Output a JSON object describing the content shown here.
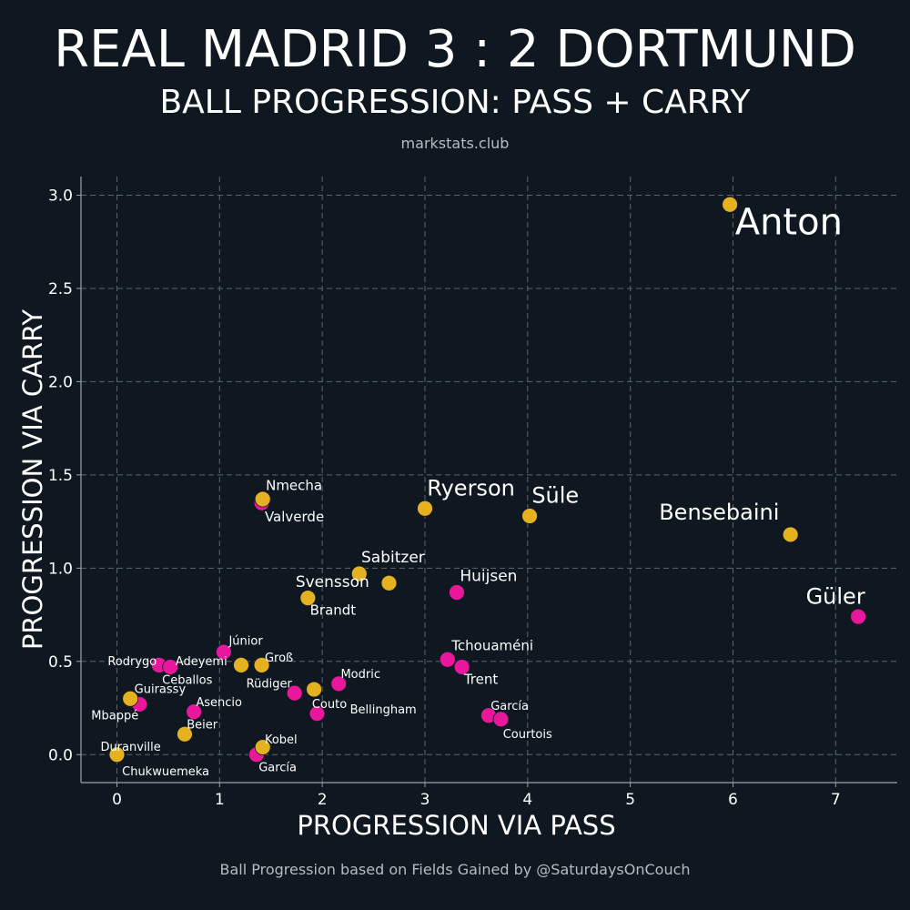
{
  "header": {
    "title": "REAL MADRID 3 : 2 DORTMUND",
    "subtitle": "BALL PROGRESSION: PASS + CARRY",
    "source": "markstats.club"
  },
  "footer": {
    "text": "Ball Progression based on Fields Gained by @SaturdaysOnCouch"
  },
  "colors": {
    "background": "#0f1820",
    "real_madrid": "#e8179c",
    "dortmund": "#e6b120",
    "grid": "#5a6670",
    "axis": "#9aa3aa"
  },
  "chart_data": {
    "type": "scatter",
    "xlabel": "PROGRESSION VIA PASS",
    "ylabel": "PROGRESSION VIA CARRY",
    "xlim": [
      -0.35,
      7.6
    ],
    "ylim": [
      -0.15,
      3.1
    ],
    "xticks": [
      "0",
      "1",
      "2",
      "3",
      "4",
      "5",
      "6",
      "7"
    ],
    "yticks": [
      "0.0",
      "0.5",
      "1.0",
      "1.5",
      "2.0",
      "2.5",
      "3.0"
    ],
    "grid": true,
    "series": [
      {
        "team": "real_madrid",
        "points": [
          {
            "name": "Güler",
            "x": 7.22,
            "y": 0.74
          },
          {
            "name": "Huijsen",
            "x": 3.31,
            "y": 0.87
          },
          {
            "name": "Tchouaméni",
            "x": 3.22,
            "y": 0.51
          },
          {
            "name": "Trent",
            "x": 3.36,
            "y": 0.47
          },
          {
            "name": "García",
            "x": 3.62,
            "y": 0.21
          },
          {
            "name": "Courtois",
            "x": 3.74,
            "y": 0.19
          },
          {
            "name": "Valverde",
            "x": 1.41,
            "y": 1.35
          },
          {
            "name": "Júnior",
            "x": 1.04,
            "y": 0.55
          },
          {
            "name": "Rodrygo",
            "x": 0.41,
            "y": 0.48
          },
          {
            "name": "Ceballos",
            "x": 0.52,
            "y": 0.47
          },
          {
            "name": "Modric",
            "x": 2.16,
            "y": 0.38
          },
          {
            "name": "Rüdiger",
            "x": 1.73,
            "y": 0.33
          },
          {
            "name": "Bellingham",
            "x": 1.95,
            "y": 0.22
          },
          {
            "name": "Asencio",
            "x": 0.75,
            "y": 0.23
          },
          {
            "name": "Mbappé",
            "x": 0.22,
            "y": 0.27
          },
          {
            "name": "García",
            "x": 1.36,
            "y": 0.0
          }
        ]
      },
      {
        "team": "dortmund",
        "points": [
          {
            "name": "Anton",
            "x": 5.97,
            "y": 2.95
          },
          {
            "name": "Bensebaini",
            "x": 6.56,
            "y": 1.18
          },
          {
            "name": "Süle",
            "x": 4.02,
            "y": 1.28
          },
          {
            "name": "Ryerson",
            "x": 3.0,
            "y": 1.32
          },
          {
            "name": "Nmecha",
            "x": 1.42,
            "y": 1.37
          },
          {
            "name": "Sabitzer",
            "x": 2.36,
            "y": 0.97
          },
          {
            "name": "Sabitzer",
            "x": 2.65,
            "y": 0.92
          },
          {
            "name": "Svensson",
            "x": 1.86,
            "y": 0.84
          },
          {
            "name": "Brandt",
            "x": 1.86,
            "y": 0.84
          },
          {
            "name": "Adeyemi",
            "x": 1.21,
            "y": 0.48
          },
          {
            "name": "Groß",
            "x": 1.41,
            "y": 0.48
          },
          {
            "name": "Couto",
            "x": 1.92,
            "y": 0.35
          },
          {
            "name": "Guirassy",
            "x": 0.13,
            "y": 0.3
          },
          {
            "name": "Beier",
            "x": 0.66,
            "y": 0.11
          },
          {
            "name": "Kobel",
            "x": 1.42,
            "y": 0.04
          },
          {
            "name": "Duranville",
            "x": 0.0,
            "y": 0.0
          },
          {
            "name": "Chukwuemeka",
            "x": 0.0,
            "y": 0.0
          }
        ]
      }
    ],
    "labels": [
      {
        "text": "Anton",
        "x": 5.97,
        "y": 2.95,
        "size": "xl",
        "dx": 0.05,
        "dy": -0.16
      },
      {
        "text": "Bensebaini",
        "x": 6.56,
        "y": 1.18,
        "size": "l",
        "dx": -1.28,
        "dy": 0.08
      },
      {
        "text": "Süle",
        "x": 4.02,
        "y": 1.28,
        "size": "l",
        "dx": 0.02,
        "dy": 0.07
      },
      {
        "text": "Ryerson",
        "x": 3.0,
        "y": 1.32,
        "size": "l",
        "dx": 0.02,
        "dy": 0.07
      },
      {
        "text": "Güler",
        "x": 7.22,
        "y": 0.74,
        "size": "l",
        "dx": -0.51,
        "dy": 0.07
      },
      {
        "text": "Huijsen",
        "x": 3.31,
        "y": 0.87,
        "size": "m",
        "dx": 0.03,
        "dy": 0.06
      },
      {
        "text": "Sabitzer",
        "x": 2.36,
        "y": 0.97,
        "size": "m",
        "dx": 0.02,
        "dy": 0.06
      },
      {
        "text": "Svensson",
        "x": 1.86,
        "y": 0.84,
        "size": "m",
        "dx": -0.12,
        "dy": 0.06
      },
      {
        "text": "Nmecha",
        "x": 1.42,
        "y": 1.37,
        "size": "s",
        "dx": 0.03,
        "dy": 0.05
      },
      {
        "text": "Valverde",
        "x": 1.41,
        "y": 1.35,
        "size": "s",
        "dx": 0.03,
        "dy": -0.1
      },
      {
        "text": "Brandt",
        "x": 1.86,
        "y": 0.84,
        "size": "s",
        "dx": 0.02,
        "dy": -0.09
      },
      {
        "text": "Tchouaméni",
        "x": 3.22,
        "y": 0.51,
        "size": "s",
        "dx": 0.04,
        "dy": 0.05
      },
      {
        "text": "Trent",
        "x": 3.36,
        "y": 0.47,
        "size": "s",
        "dx": 0.02,
        "dy": -0.09
      },
      {
        "text": "Júnior",
        "x": 1.04,
        "y": 0.55,
        "size": "xs",
        "dx": 0.05,
        "dy": 0.04
      },
      {
        "text": "Rodrygo",
        "x": 0.41,
        "y": 0.48,
        "size": "xs",
        "dx": -0.5,
        "dy": 0.0
      },
      {
        "text": "Adeyemi",
        "x": 0.52,
        "y": 0.47,
        "size": "xs",
        "dx": 0.05,
        "dy": 0.01
      },
      {
        "text": "Ceballos",
        "x": 0.52,
        "y": 0.47,
        "size": "xs",
        "dx": -0.08,
        "dy": -0.09
      },
      {
        "text": "Groß",
        "x": 1.41,
        "y": 0.48,
        "size": "xs",
        "dx": 0.03,
        "dy": 0.02
      },
      {
        "text": "Rüdiger",
        "x": 1.73,
        "y": 0.33,
        "size": "xs",
        "dx": -0.47,
        "dy": 0.03
      },
      {
        "text": "Modric",
        "x": 2.16,
        "y": 0.38,
        "size": "xs",
        "dx": 0.02,
        "dy": 0.03
      },
      {
        "text": "Couto",
        "x": 1.92,
        "y": 0.35,
        "size": "xs",
        "dx": -0.02,
        "dy": -0.1
      },
      {
        "text": "Bellingham",
        "x": 1.95,
        "y": 0.22,
        "size": "xs",
        "dx": 0.32,
        "dy": 0.0
      },
      {
        "text": "Guirassy",
        "x": 0.13,
        "y": 0.3,
        "size": "xs",
        "dx": 0.04,
        "dy": 0.03
      },
      {
        "text": "Mbappé",
        "x": 0.22,
        "y": 0.27,
        "size": "xs",
        "dx": -0.47,
        "dy": -0.08
      },
      {
        "text": "Asencio",
        "x": 0.75,
        "y": 0.23,
        "size": "xs",
        "dx": 0.02,
        "dy": 0.03
      },
      {
        "text": "Beier",
        "x": 0.66,
        "y": 0.11,
        "size": "xs",
        "dx": 0.02,
        "dy": 0.03
      },
      {
        "text": "García",
        "x": 3.62,
        "y": 0.21,
        "size": "xs",
        "dx": 0.02,
        "dy": 0.03
      },
      {
        "text": "Courtois",
        "x": 3.74,
        "y": 0.19,
        "size": "xs",
        "dx": 0.02,
        "dy": -0.1
      },
      {
        "text": "Duranville",
        "x": 0.0,
        "y": 0.0,
        "size": "xs",
        "dx": -0.16,
        "dy": 0.02
      },
      {
        "text": "Chukwuemeka",
        "x": 0.0,
        "y": 0.0,
        "size": "xs",
        "dx": 0.05,
        "dy": -0.11
      },
      {
        "text": "Kobel",
        "x": 1.42,
        "y": 0.04,
        "size": "xs",
        "dx": 0.02,
        "dy": 0.02
      },
      {
        "text": "García",
        "x": 1.36,
        "y": 0.0,
        "size": "xs",
        "dx": 0.02,
        "dy": -0.09
      }
    ]
  }
}
